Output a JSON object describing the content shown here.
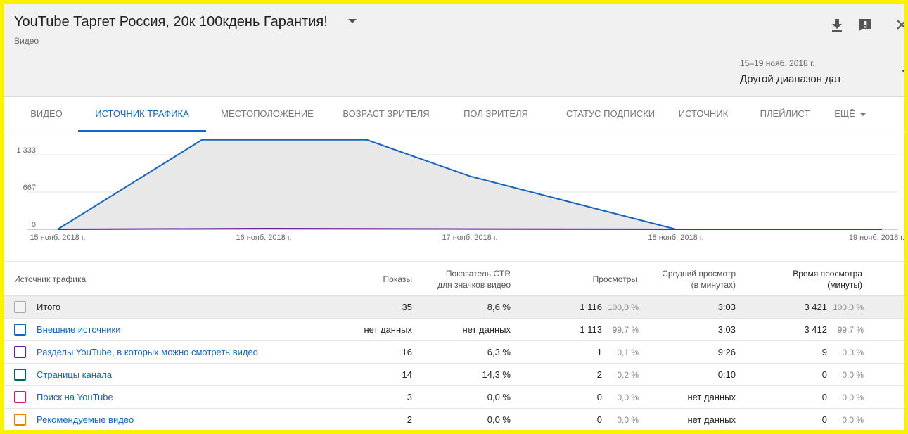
{
  "header": {
    "title": "YouTube Таргет Россия, 20к 100кдень Гарантия!",
    "subtitle": "Видео",
    "date_range_small": "15–19 нояб. 2018 г.",
    "date_range_label": "Другой диапазон дат",
    "icons": [
      "download-icon",
      "feedback-icon",
      "close-icon"
    ]
  },
  "tabs": [
    {
      "label": "ВИДЕО",
      "active": false
    },
    {
      "label": "ИСТОЧНИК ТРАФИКА",
      "active": true
    },
    {
      "label": "МЕСТОПОЛОЖЕНИЕ",
      "active": false
    },
    {
      "label": "ВОЗРАСТ ЗРИТЕЛЯ",
      "active": false
    },
    {
      "label": "ПОЛ ЗРИТЕЛЯ",
      "active": false
    },
    {
      "label": "СТАТУС ПОДПИСКИ",
      "active": false
    },
    {
      "label": "ИСТОЧНИК",
      "active": false
    },
    {
      "label": "ПЛЕЙЛИСТ",
      "active": false
    },
    {
      "label": "ЕЩЁ",
      "active": false
    }
  ],
  "chart_data": {
    "type": "area",
    "x": [
      "15 нояб. 2018 г.",
      "16 нояб. 2018 г.",
      "17 нояб. 2018 г.",
      "18 нояб. 2018 г.",
      "19 нояб. 2018 г."
    ],
    "y_ticks": [
      {
        "value": 0,
        "label": "0"
      },
      {
        "value": 667,
        "label": "667"
      },
      {
        "value": 1333,
        "label": "1 333"
      }
    ],
    "ylim": [
      0,
      1333
    ],
    "grid": true,
    "series": [
      {
        "points": [
          [
            0,
            0
          ],
          [
            0.7,
            1600
          ],
          [
            1.5,
            1600
          ],
          [
            2.0,
            950
          ],
          [
            3.0,
            0
          ],
          [
            4.0,
            0
          ]
        ],
        "color": "#1565c0",
        "fill": "#e8e8e8"
      },
      {
        "points": [
          [
            0,
            0
          ],
          [
            1.0,
            12
          ],
          [
            2.0,
            5
          ],
          [
            3.0,
            0
          ],
          [
            4.0,
            0
          ]
        ],
        "color": "#6a1b9a"
      }
    ]
  },
  "table": {
    "headers": {
      "source": "Источник трафика",
      "impressions": "Показы",
      "ctr_line1": "Показатель CTR",
      "ctr_line2": "для значков видео",
      "views": "Просмотры",
      "avg_line1": "Средний просмотр",
      "avg_line2": "(в минутах)",
      "watch_line1": "Время просмотра",
      "watch_line2": "(минуты)"
    },
    "rows": [
      {
        "name": "Итого",
        "link": false,
        "color": "#aaaaaa",
        "impressions": "35",
        "ctr": "8,6 %",
        "views": "1 116",
        "views_pct": "100,0 %",
        "avg": "3:03",
        "watch": "3 421",
        "watch_pct": "100,0 %"
      },
      {
        "name": "Внешние источники",
        "link": true,
        "color": "#1565c0",
        "impressions": "нет данных",
        "ctr": "нет данных",
        "views": "1 113",
        "views_pct": "99,7 %",
        "avg": "3:03",
        "watch": "3 412",
        "watch_pct": "99,7 %"
      },
      {
        "name": "Разделы YouTube, в которых можно смотреть видео",
        "link": true,
        "color": "#6a1b9a",
        "impressions": "16",
        "ctr": "6,3 %",
        "views": "1",
        "views_pct": "0,1 %",
        "avg": "9:26",
        "watch": "9",
        "watch_pct": "0,3 %"
      },
      {
        "name": "Страницы канала",
        "link": true,
        "color": "#00695c",
        "impressions": "14",
        "ctr": "14,3 %",
        "views": "2",
        "views_pct": "0,2 %",
        "avg": "0:10",
        "watch": "0",
        "watch_pct": "0,0 %"
      },
      {
        "name": "Поиск на YouTube",
        "link": true,
        "color": "#d81b60",
        "impressions": "3",
        "ctr": "0,0 %",
        "views": "0",
        "views_pct": "0,0 %",
        "avg": "нет данных",
        "watch": "0",
        "watch_pct": "0,0 %"
      },
      {
        "name": "Рекомендуемые видео",
        "link": true,
        "color": "#f57c00",
        "impressions": "2",
        "ctr": "0,0 %",
        "views": "0",
        "views_pct": "0,0 %",
        "avg": "нет данных",
        "watch": "0",
        "watch_pct": "0,0 %"
      }
    ]
  }
}
